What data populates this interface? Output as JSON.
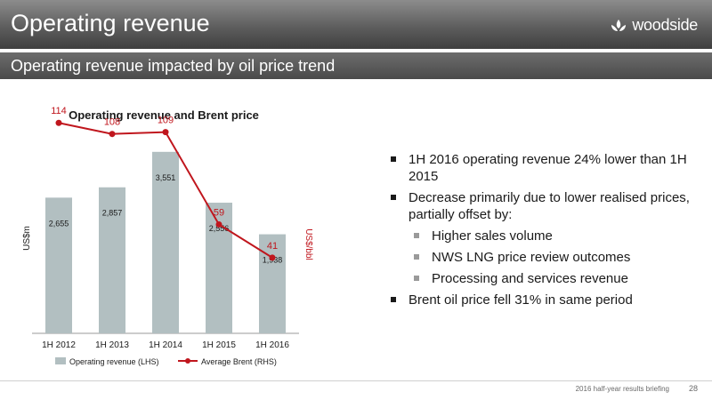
{
  "header": {
    "title": "Operating revenue",
    "logo_text": "woodside"
  },
  "subheader": {
    "title": "Operating revenue impacted by oil price trend"
  },
  "chart_data": {
    "type": "bar",
    "title": "Operating revenue and Brent price",
    "categories": [
      "1H 2012",
      "1H 2013",
      "1H 2014",
      "1H 2015",
      "1H 2016"
    ],
    "ylabel": "US$m",
    "y2label": "US$/bbl",
    "series": [
      {
        "name": "Operating revenue (LHS)",
        "type": "bar",
        "axis": "left",
        "values": [
          2655,
          2857,
          3551,
          2556,
          1938
        ],
        "labels": [
          "2,655",
          "2,857",
          "3,551",
          "2,556",
          "1,938"
        ],
        "color": "#b2bfc1"
      },
      {
        "name": "Average Brent (RHS)",
        "type": "line",
        "axis": "right",
        "values": [
          114,
          108,
          109,
          59,
          41
        ],
        "labels": [
          "114",
          "108",
          "109",
          "59",
          "41"
        ],
        "color": "#c0161d"
      }
    ],
    "ylim": [
      0,
      4000
    ],
    "y2lim": [
      0,
      130
    ],
    "grid": false,
    "legend": "bottom"
  },
  "bullets": [
    {
      "text": "1H 2016 operating revenue 24% lower than 1H 2015"
    },
    {
      "text": "Decrease primarily due to lower realised prices, partially offset by:",
      "subs": [
        "Higher sales volume",
        "NWS LNG price review outcomes",
        "Processing and services revenue"
      ]
    },
    {
      "text": "Brent oil price fell 31% in same period"
    }
  ],
  "footer": {
    "text": "2016 half-year results briefing",
    "page": "28"
  }
}
